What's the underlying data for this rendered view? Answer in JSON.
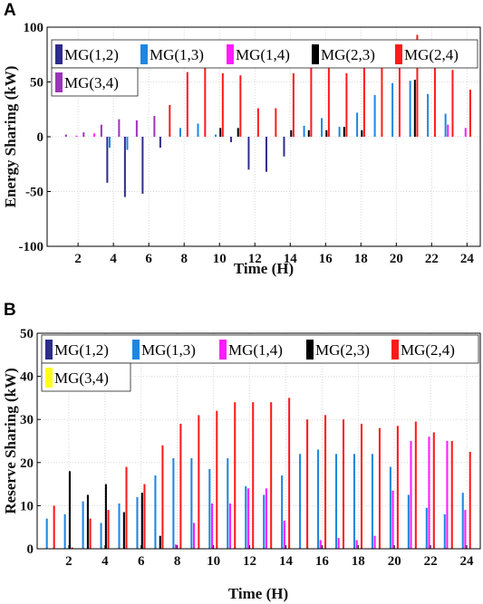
{
  "panels": [
    {
      "label": "A",
      "legend_rows": [
        [
          "MG(1,2)",
          "MG(1,3)",
          "MG(1,4)",
          "MG(2,3)",
          "MG(2,4)"
        ],
        [
          "MG(3,4)"
        ]
      ]
    },
    {
      "label": "B",
      "legend_rows": [
        [
          "MG(1,2)",
          "MG(1,3)",
          "MG(1,4)",
          "MG(2,3)",
          "MG(2,4)"
        ],
        [
          "MG(3,4)"
        ]
      ]
    }
  ],
  "chart_data": [
    {
      "type": "bar",
      "panel": "A",
      "xlabel": "Time (H)",
      "ylabel": "Energy Sharing (kW)",
      "ylim": [
        -100,
        100
      ],
      "yticks": [
        -100,
        -50,
        0,
        50,
        100
      ],
      "xticks": [
        2,
        4,
        6,
        8,
        10,
        12,
        14,
        16,
        18,
        20,
        22,
        24
      ],
      "grid": true,
      "legend_position": "top-left",
      "categories": [
        1,
        2,
        3,
        4,
        5,
        6,
        7,
        8,
        9,
        10,
        11,
        12,
        13,
        14,
        15,
        16,
        17,
        18,
        19,
        20,
        21,
        22,
        23,
        24
      ],
      "series": [
        {
          "name": "MG(1,2)",
          "color": "#2e2c8c",
          "values": [
            0,
            0,
            0,
            -42,
            -55,
            -52,
            -10,
            0,
            0,
            0,
            -5,
            -30,
            -32,
            -18,
            0,
            0,
            0,
            0,
            0,
            0,
            0,
            0,
            0,
            0
          ]
        },
        {
          "name": "MG(1,3)",
          "color": "#1f86e0",
          "values": [
            0,
            0,
            0,
            -10,
            -12,
            0,
            0,
            8,
            12,
            2,
            0,
            0,
            0,
            0,
            10,
            17,
            9,
            22,
            38,
            49,
            51,
            39,
            21,
            0
          ]
        },
        {
          "name": "MG(1,4)",
          "color": "#ff1cff",
          "values": [
            0,
            1,
            3,
            0,
            0,
            0,
            0,
            0,
            0,
            0,
            0,
            0,
            0,
            0,
            0,
            0,
            0,
            0,
            0,
            0,
            0,
            0,
            11,
            8
          ]
        },
        {
          "name": "MG(2,3)",
          "color": "#000000",
          "values": [
            0,
            0,
            0,
            0,
            0,
            0,
            0,
            0,
            0,
            8,
            8,
            0,
            0,
            6,
            6,
            6,
            9,
            6,
            0,
            0,
            52,
            0,
            0,
            0
          ]
        },
        {
          "name": "MG(2,4)",
          "color": "#ff1a1a",
          "values": [
            0,
            0,
            0,
            0,
            0,
            0,
            29,
            59,
            66,
            58,
            56,
            26,
            26,
            58,
            67,
            70,
            58,
            66,
            77,
            86,
            93,
            82,
            61,
            43
          ]
        },
        {
          "name": "MG(3,4)",
          "color": "#9b35b8",
          "values": [
            2,
            4,
            11,
            16,
            15,
            19,
            0,
            0,
            0,
            0,
            0,
            0,
            0,
            0,
            0,
            0,
            0,
            0,
            0,
            0,
            0,
            0,
            0,
            0
          ]
        }
      ]
    },
    {
      "type": "bar",
      "panel": "B",
      "xlabel": "Time (H)",
      "ylabel": "Reserve Sharing (kW)",
      "ylim": [
        0,
        50
      ],
      "yticks": [
        0,
        10,
        20,
        30,
        40,
        50
      ],
      "xticks": [
        2,
        4,
        6,
        8,
        10,
        12,
        14,
        16,
        18,
        20,
        22,
        24
      ],
      "grid": true,
      "legend_position": "top-left",
      "categories": [
        1,
        2,
        3,
        4,
        5,
        6,
        7,
        8,
        9,
        10,
        11,
        12,
        13,
        14,
        15,
        16,
        17,
        18,
        19,
        20,
        21,
        22,
        23,
        24
      ],
      "series": [
        {
          "name": "MG(1,2)",
          "color": "#2e2c8c",
          "values": [
            0,
            0,
            0,
            0,
            0,
            0,
            0,
            0,
            0,
            0,
            0,
            0,
            0,
            0,
            0,
            0,
            0,
            0,
            0,
            0,
            0,
            0,
            0,
            0
          ]
        },
        {
          "name": "MG(1,3)",
          "color": "#1f86e0",
          "values": [
            7,
            8,
            11,
            6,
            10.5,
            12,
            17,
            21,
            21,
            18.5,
            21,
            14.5,
            12.5,
            17,
            22,
            23,
            22,
            22,
            22,
            19,
            12.5,
            9.5,
            8,
            13
          ]
        },
        {
          "name": "MG(1,4)",
          "color": "#ff1cff",
          "values": [
            0,
            0,
            0,
            0,
            0,
            0,
            0,
            1,
            6,
            10.5,
            10.5,
            14,
            14,
            6.5,
            0,
            2,
            2.5,
            2,
            3,
            13.5,
            25,
            26,
            25,
            9
          ]
        },
        {
          "name": "MG(2,3)",
          "color": "#000000",
          "values": [
            0,
            18,
            12.5,
            15,
            8.5,
            13,
            3,
            0,
            0,
            0,
            0,
            0,
            0,
            0,
            0,
            0,
            0,
            0,
            0,
            0,
            0,
            0,
            0,
            0
          ]
        },
        {
          "name": "MG(2,4)",
          "color": "#ff1a1a",
          "values": [
            10,
            0.3,
            7,
            9,
            19,
            15,
            24,
            29,
            31,
            32,
            34,
            34,
            34,
            35,
            30,
            31,
            30,
            29,
            28,
            28.5,
            29.5,
            27,
            25,
            22.5
          ]
        },
        {
          "name": "MG(3,4)",
          "color": "#ffff1a",
          "values": [
            0,
            0,
            0,
            0,
            0,
            0,
            0,
            0,
            0,
            0,
            0,
            0,
            0,
            0,
            0,
            0,
            0,
            0,
            0,
            0,
            0,
            0,
            0,
            0
          ]
        }
      ]
    }
  ]
}
